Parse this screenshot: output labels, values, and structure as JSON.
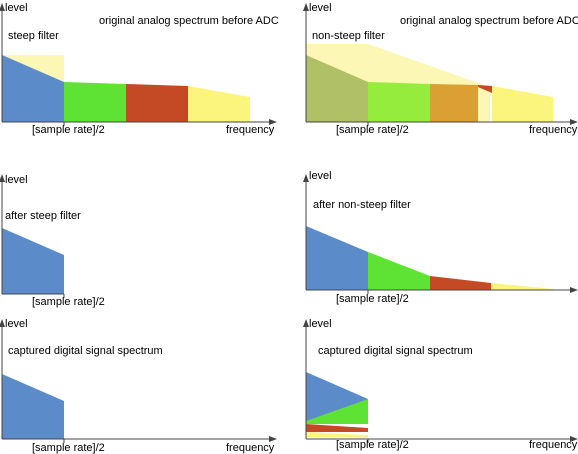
{
  "colors": {
    "blue": "#5B8BC8",
    "green": "#5EE234",
    "red": "#C34A24",
    "yellow": "#FBF57E",
    "pale_yellow": "#FDF7B5",
    "olive": "#B0C066",
    "lime": "#96EC3C",
    "orange": "#DAA033",
    "axis": "#444444"
  },
  "panels": {
    "tl": {
      "level": "level",
      "frequency": "frequency",
      "sample_rate": "[sample rate]/2",
      "title": "original analog spectrum before ADC",
      "filter": "steep filter"
    },
    "tr": {
      "level": "level",
      "frequency": "frequency",
      "sample_rate": "[sample rate]/2",
      "title": "original analog spectrum before ADC",
      "filter": "non-steep filter"
    },
    "ml": {
      "level": "level",
      "sample_rate": "[sample rate]/2",
      "caption": "after steep filter"
    },
    "mr": {
      "level": "level",
      "sample_rate": "[sample rate]/2",
      "caption": "after non-steep filter"
    },
    "bl": {
      "level": "level",
      "frequency": "frequency",
      "sample_rate": "[sample rate]/2",
      "caption": "captured digital signal spectrum"
    },
    "br": {
      "level": "level",
      "frequency": "frequency",
      "sample_rate": "[sample rate]/2",
      "caption": "captured digital signal spectrum"
    }
  }
}
